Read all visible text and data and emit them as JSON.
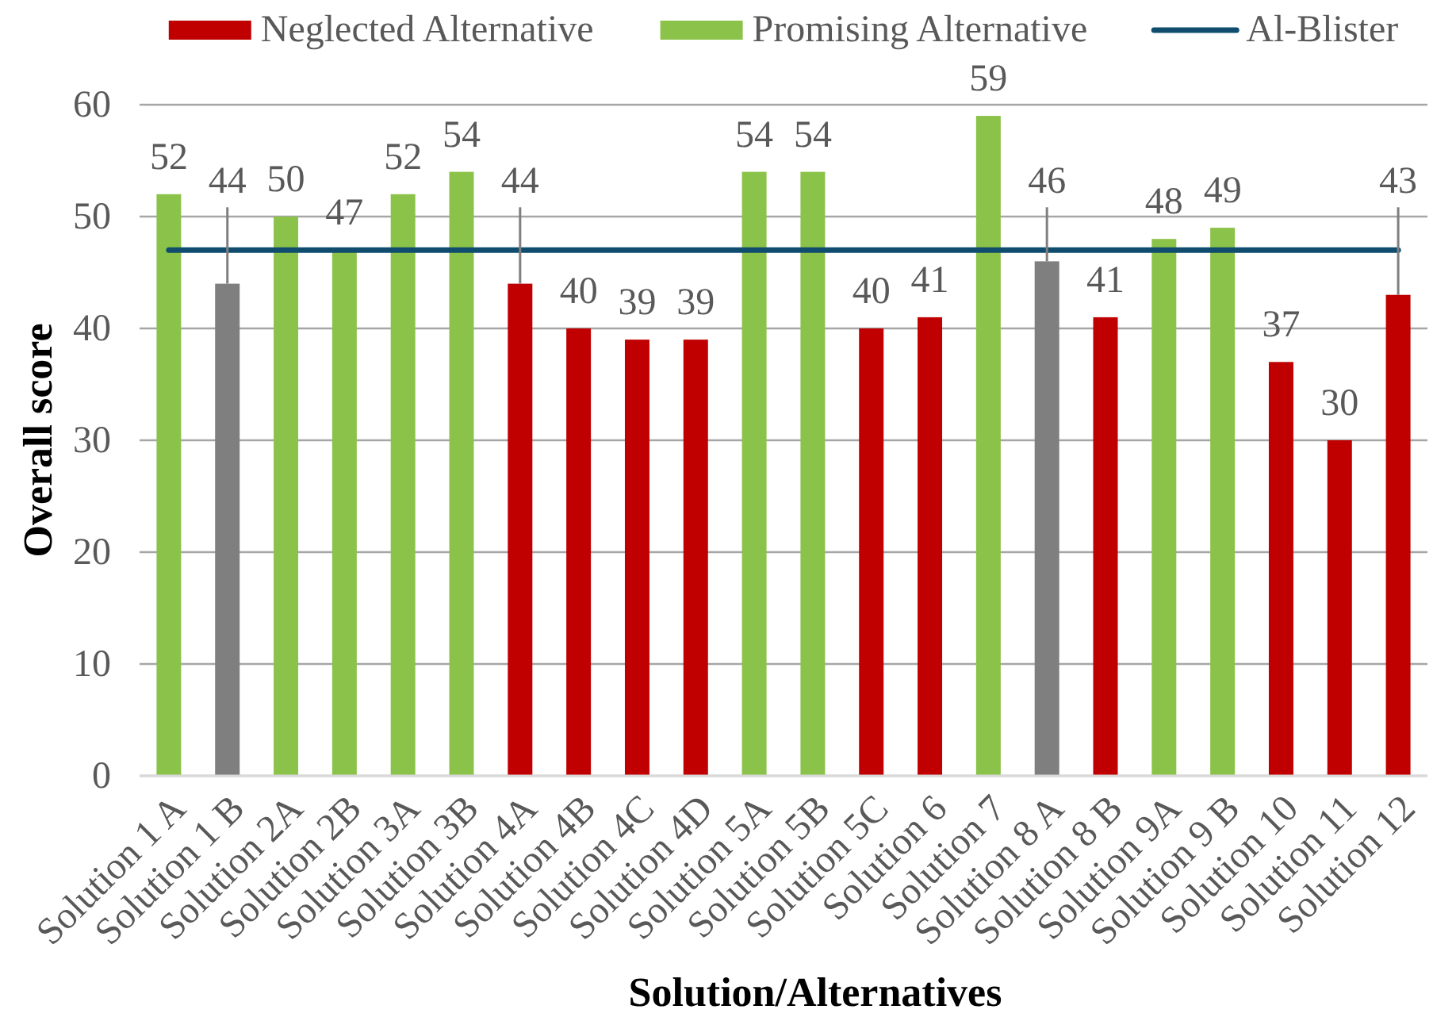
{
  "chart_data": {
    "type": "bar",
    "stacked": true,
    "xlabel": "Solution/Alternatives",
    "ylabel": "Overall score",
    "categories": [
      "Solution 1 A",
      "Solution 1 B",
      "Solution 2A",
      "Solution 2B",
      "Solution 3A",
      "Solution 3B",
      "Solution 4A",
      "Solution 4B",
      "Solution 4C",
      "Solution 4D",
      "Solution 5A",
      "Solution 5B",
      "Solution 5C",
      "Solution 6",
      "Solution 7",
      "Solution 8 A",
      "Solution 8 B",
      "Solution 9A",
      "Solution 9 B",
      "Solution 10",
      "Solution 11",
      "Solution 12"
    ],
    "series": [
      {
        "name": "Neglected Alternative",
        "color": "#c00000",
        "values": [
          null,
          null,
          null,
          null,
          null,
          null,
          44,
          40,
          39,
          39,
          null,
          null,
          40,
          41,
          null,
          null,
          41,
          null,
          null,
          37,
          30,
          43
        ],
        "value_labels": [
          null,
          null,
          null,
          null,
          null,
          null,
          "44",
          "40",
          "39",
          "39",
          null,
          null,
          "40",
          "41",
          null,
          null,
          "41",
          null,
          null,
          "37",
          "30",
          "43"
        ]
      },
      {
        "name": "Promising Alternative",
        "color": "#8bc34a",
        "values": [
          52,
          null,
          50,
          47,
          52,
          54,
          null,
          null,
          null,
          null,
          54,
          54,
          null,
          null,
          59,
          null,
          null,
          48,
          49,
          null,
          null,
          null
        ],
        "value_labels": [
          "52",
          null,
          "50",
          "47",
          "52",
          "54",
          null,
          null,
          null,
          null,
          "54",
          "54",
          null,
          null,
          "59",
          null,
          null,
          "48",
          "49",
          null,
          null,
          null
        ]
      },
      {
        "color": "#7f7f7f",
        "values": [
          null,
          44,
          null,
          null,
          null,
          null,
          null,
          null,
          null,
          null,
          null,
          null,
          null,
          null,
          null,
          46,
          null,
          null,
          null,
          null,
          null,
          null
        ],
        "value_labels": [
          null,
          "44",
          null,
          null,
          null,
          null,
          null,
          null,
          null,
          null,
          null,
          null,
          null,
          null,
          null,
          "46",
          null,
          null,
          null,
          null,
          null,
          null
        ]
      },
      {
        "name": "Al-Blister",
        "type": "line",
        "color": "#0f4c6e",
        "values": [
          47,
          47,
          47,
          47,
          47,
          47,
          47,
          47,
          47,
          47,
          47,
          47,
          47,
          47,
          47,
          47,
          47,
          47,
          47,
          47,
          47,
          47
        ]
      }
    ],
    "ylim": [
      0,
      60
    ],
    "yticks": [
      0,
      10,
      20,
      30,
      40,
      50,
      60
    ],
    "grid": "y",
    "legend": "top"
  }
}
